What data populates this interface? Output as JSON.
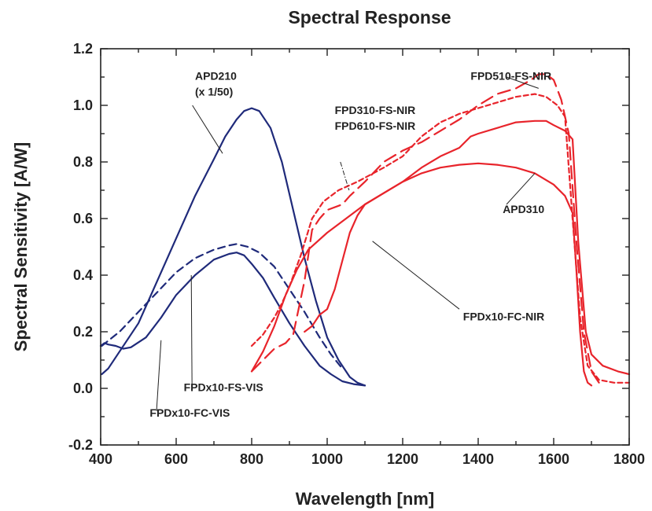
{
  "chart_data": {
    "type": "line",
    "title": "Spectral Response",
    "xlabel": "Wavelength [nm]",
    "ylabel": "Spectral Sensitivity [A/W]",
    "xlim": [
      400,
      1800
    ],
    "ylim": [
      -0.2,
      1.2
    ],
    "x_ticks": [
      "400",
      "600",
      "800",
      "1000",
      "1200",
      "1400",
      "1600",
      "1800"
    ],
    "y_ticks": [
      "-0.2",
      "0.0",
      "0.2",
      "0.4",
      "0.6",
      "0.8",
      "1.0",
      "1.2"
    ],
    "grid": false,
    "legend": "none",
    "colors": {
      "blue": "#1f2a7a",
      "red": "#e8242b"
    },
    "series": [
      {
        "key": "apd210",
        "color": "#1f2a7a",
        "dash": "solid",
        "points": [
          [
            403,
            0.05
          ],
          [
            420,
            0.07
          ],
          [
            450,
            0.13
          ],
          [
            500,
            0.23
          ],
          [
            550,
            0.38
          ],
          [
            600,
            0.53
          ],
          [
            650,
            0.68
          ],
          [
            700,
            0.81
          ],
          [
            730,
            0.89
          ],
          [
            760,
            0.95
          ],
          [
            780,
            0.98
          ],
          [
            800,
            0.99
          ],
          [
            820,
            0.98
          ],
          [
            850,
            0.92
          ],
          [
            880,
            0.8
          ],
          [
            910,
            0.63
          ],
          [
            940,
            0.46
          ],
          [
            970,
            0.31
          ],
          [
            1000,
            0.18
          ],
          [
            1030,
            0.1
          ],
          [
            1060,
            0.04
          ],
          [
            1080,
            0.02
          ],
          [
            1100,
            0.01
          ]
        ]
      },
      {
        "key": "fpdx10_fs_vis",
        "color": "#1f2a7a",
        "dash": "dashed",
        "points": [
          [
            403,
            0.15
          ],
          [
            450,
            0.2
          ],
          [
            500,
            0.27
          ],
          [
            550,
            0.34
          ],
          [
            600,
            0.41
          ],
          [
            650,
            0.46
          ],
          [
            700,
            0.49
          ],
          [
            740,
            0.505
          ],
          [
            760,
            0.51
          ],
          [
            790,
            0.5
          ],
          [
            820,
            0.48
          ],
          [
            860,
            0.43
          ],
          [
            900,
            0.35
          ],
          [
            940,
            0.27
          ],
          [
            980,
            0.18
          ],
          [
            1010,
            0.12
          ],
          [
            1040,
            0.07
          ]
        ]
      },
      {
        "key": "fpdx10_fc_vis",
        "color": "#1f2a7a",
        "dash": "solid",
        "points": [
          [
            400,
            0.15
          ],
          [
            410,
            0.16
          ],
          [
            420,
            0.155
          ],
          [
            440,
            0.15
          ],
          [
            460,
            0.14
          ],
          [
            480,
            0.145
          ],
          [
            520,
            0.18
          ],
          [
            560,
            0.25
          ],
          [
            600,
            0.33
          ],
          [
            650,
            0.4
          ],
          [
            700,
            0.455
          ],
          [
            740,
            0.475
          ],
          [
            760,
            0.48
          ],
          [
            780,
            0.47
          ],
          [
            800,
            0.44
          ],
          [
            830,
            0.39
          ],
          [
            860,
            0.32
          ],
          [
            900,
            0.23
          ],
          [
            940,
            0.15
          ],
          [
            980,
            0.08
          ],
          [
            1010,
            0.05
          ],
          [
            1040,
            0.025
          ],
          [
            1070,
            0.015
          ],
          [
            1100,
            0.01
          ]
        ]
      },
      {
        "key": "fpd510_fs_nir",
        "color": "#e8242b",
        "dash": "long-dash",
        "points": [
          [
            800,
            0.06
          ],
          [
            830,
            0.1
          ],
          [
            860,
            0.14
          ],
          [
            890,
            0.16
          ],
          [
            910,
            0.19
          ],
          [
            940,
            0.38
          ],
          [
            960,
            0.56
          ],
          [
            980,
            0.6
          ],
          [
            1000,
            0.63
          ],
          [
            1040,
            0.65
          ],
          [
            1060,
            0.68
          ],
          [
            1100,
            0.73
          ],
          [
            1150,
            0.8
          ],
          [
            1200,
            0.84
          ],
          [
            1250,
            0.87
          ],
          [
            1300,
            0.91
          ],
          [
            1350,
            0.95
          ],
          [
            1400,
            1.0
          ],
          [
            1450,
            1.04
          ],
          [
            1500,
            1.06
          ],
          [
            1540,
            1.09
          ],
          [
            1560,
            1.11
          ],
          [
            1580,
            1.11
          ],
          [
            1600,
            1.09
          ],
          [
            1620,
            1.02
          ],
          [
            1640,
            0.9
          ],
          [
            1660,
            0.52
          ],
          [
            1680,
            0.2
          ],
          [
            1700,
            0.06
          ],
          [
            1720,
            0.02
          ]
        ]
      },
      {
        "key": "fpd310_610_fs_nir",
        "color": "#e8242b",
        "dash": "short-dash",
        "points": [
          [
            800,
            0.15
          ],
          [
            830,
            0.19
          ],
          [
            860,
            0.25
          ],
          [
            880,
            0.3
          ],
          [
            900,
            0.36
          ],
          [
            930,
            0.47
          ],
          [
            960,
            0.6
          ],
          [
            990,
            0.66
          ],
          [
            1030,
            0.7
          ],
          [
            1080,
            0.73
          ],
          [
            1150,
            0.78
          ],
          [
            1200,
            0.82
          ],
          [
            1250,
            0.89
          ],
          [
            1300,
            0.94
          ],
          [
            1350,
            0.97
          ],
          [
            1400,
            0.99
          ],
          [
            1450,
            1.01
          ],
          [
            1500,
            1.03
          ],
          [
            1550,
            1.04
          ],
          [
            1580,
            1.03
          ],
          [
            1610,
            1.0
          ],
          [
            1630,
            0.96
          ],
          [
            1650,
            0.6
          ],
          [
            1670,
            0.25
          ],
          [
            1690,
            0.08
          ],
          [
            1720,
            0.03
          ],
          [
            1760,
            0.02
          ],
          [
            1800,
            0.02
          ]
        ]
      },
      {
        "key": "fpdx10_fc_nir",
        "color": "#e8242b",
        "dash": "solid",
        "points": [
          [
            800,
            0.06
          ],
          [
            830,
            0.13
          ],
          [
            860,
            0.22
          ],
          [
            890,
            0.33
          ],
          [
            920,
            0.42
          ],
          [
            950,
            0.49
          ],
          [
            1000,
            0.55
          ],
          [
            1050,
            0.6
          ],
          [
            1100,
            0.65
          ],
          [
            1150,
            0.69
          ],
          [
            1200,
            0.73
          ],
          [
            1250,
            0.78
          ],
          [
            1300,
            0.82
          ],
          [
            1350,
            0.85
          ],
          [
            1380,
            0.89
          ],
          [
            1400,
            0.9
          ],
          [
            1450,
            0.92
          ],
          [
            1500,
            0.94
          ],
          [
            1550,
            0.945
          ],
          [
            1580,
            0.945
          ],
          [
            1600,
            0.93
          ],
          [
            1630,
            0.91
          ],
          [
            1650,
            0.88
          ],
          [
            1665,
            0.52
          ],
          [
            1685,
            0.2
          ],
          [
            1700,
            0.12
          ],
          [
            1730,
            0.08
          ],
          [
            1770,
            0.06
          ],
          [
            1800,
            0.05
          ]
        ]
      },
      {
        "key": "apd310",
        "color": "#e8242b",
        "dash": "solid",
        "points": [
          [
            940,
            0.2
          ],
          [
            960,
            0.22
          ],
          [
            980,
            0.26
          ],
          [
            1000,
            0.28
          ],
          [
            1020,
            0.35
          ],
          [
            1040,
            0.45
          ],
          [
            1060,
            0.55
          ],
          [
            1080,
            0.61
          ],
          [
            1100,
            0.65
          ],
          [
            1150,
            0.69
          ],
          [
            1200,
            0.73
          ],
          [
            1250,
            0.76
          ],
          [
            1300,
            0.78
          ],
          [
            1350,
            0.79
          ],
          [
            1400,
            0.795
          ],
          [
            1450,
            0.79
          ],
          [
            1500,
            0.78
          ],
          [
            1550,
            0.76
          ],
          [
            1600,
            0.72
          ],
          [
            1630,
            0.68
          ],
          [
            1650,
            0.62
          ],
          [
            1660,
            0.42
          ],
          [
            1670,
            0.2
          ],
          [
            1680,
            0.06
          ],
          [
            1690,
            0.02
          ],
          [
            1700,
            0.01
          ]
        ]
      }
    ],
    "annotations": [
      {
        "key": "apd210",
        "lines": [
          "APD210",
          "(x 1/50)"
        ],
        "at": [
          650,
          1.09
        ],
        "to": [
          723,
          0.83
        ],
        "leader": [
          [
            643,
            1.0
          ],
          [
            723,
            0.83
          ]
        ],
        "leader_style": "solid"
      },
      {
        "key": "fpd510_fs_nir",
        "lines": [
          "FPD510-FS-NIR"
        ],
        "at": [
          1380,
          1.09
        ],
        "leader": [
          [
            1475,
            1.1
          ],
          [
            1560,
            1.06
          ]
        ],
        "leader_style": "solid"
      },
      {
        "key": "fpd310_610_fs_nir",
        "lines": [
          "FPD310-FS-NIR",
          "FPD610-FS-NIR"
        ],
        "at": [
          1020,
          0.97
        ],
        "leader": [
          [
            1035,
            0.8
          ],
          [
            1058,
            0.7
          ]
        ],
        "leader_style": "dashdot"
      },
      {
        "key": "apd310",
        "lines": [
          "APD310"
        ],
        "at": [
          1465,
          0.62
        ],
        "leader": [
          [
            1475,
            0.65
          ],
          [
            1550,
            0.76
          ]
        ],
        "leader_style": "solid"
      },
      {
        "key": "fpdx10_fc_nir",
        "lines": [
          "FPDx10-FC-NIR"
        ],
        "at": [
          1360,
          0.24
        ],
        "leader": [
          [
            1350,
            0.28
          ],
          [
            1120,
            0.52
          ]
        ],
        "leader_style": "solid"
      },
      {
        "key": "fpdx10_fs_vis",
        "lines": [
          "FPDx10-FS-VIS"
        ],
        "at": [
          620,
          -0.01
        ],
        "leader": [
          [
            642,
            0.01
          ],
          [
            640,
            0.4
          ]
        ],
        "leader_style": "solid"
      },
      {
        "key": "fpdx10_fc_vis",
        "lines": [
          "FPDx10-FC-VIS"
        ],
        "at": [
          530,
          -0.1
        ],
        "leader": [
          [
            548,
            -0.08
          ],
          [
            560,
            0.17
          ]
        ],
        "leader_style": "solid"
      }
    ]
  }
}
